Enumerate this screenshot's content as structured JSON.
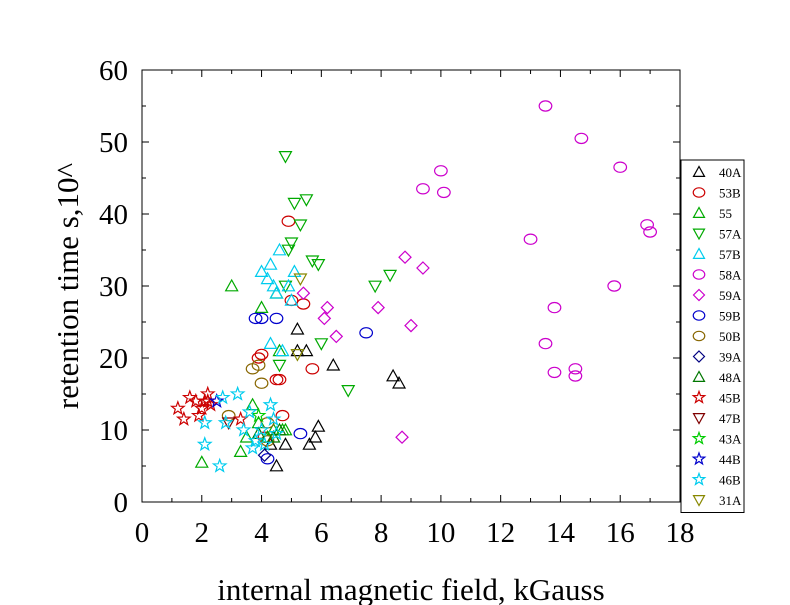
{
  "chart_data": {
    "type": "scatter",
    "xlabel": "internal magnetic field, kGauss",
    "ylabel": "retention time s,10^",
    "xlim": [
      0,
      18
    ],
    "ylim": [
      0,
      60
    ],
    "xticks": [
      "0",
      "2",
      "4",
      "6",
      "8",
      "10",
      "12",
      "14",
      "16",
      "18"
    ],
    "yticks": [
      "0",
      "10",
      "20",
      "30",
      "40",
      "50",
      "60"
    ],
    "grid": false,
    "legend_position": "right",
    "series": [
      {
        "name": "40A",
        "marker": "triangle-up",
        "color": "#000000",
        "points": [
          [
            4.5,
            5
          ],
          [
            4.8,
            8
          ],
          [
            5.2,
            24
          ],
          [
            5.5,
            21
          ],
          [
            5.2,
            21
          ],
          [
            5.6,
            8
          ],
          [
            5.8,
            9
          ],
          [
            5.9,
            10.5
          ],
          [
            6.4,
            19
          ],
          [
            8.4,
            17.5
          ],
          [
            8.6,
            16.5
          ],
          [
            4.3,
            8
          ]
        ]
      },
      {
        "name": "53B",
        "marker": "circle",
        "color": "#cc0000",
        "points": [
          [
            3.9,
            20
          ],
          [
            4.0,
            20.5
          ],
          [
            4.5,
            17
          ],
          [
            4.6,
            17
          ],
          [
            4.7,
            12
          ],
          [
            4.9,
            39
          ],
          [
            5.0,
            28
          ],
          [
            5.4,
            27.5
          ],
          [
            5.7,
            18.5
          ],
          [
            4.1,
            9
          ]
        ]
      },
      {
        "name": "55",
        "marker": "triangle-up",
        "color": "#00aa00",
        "points": [
          [
            2.0,
            5.5
          ],
          [
            3.0,
            30
          ],
          [
            3.3,
            7
          ],
          [
            3.5,
            9
          ],
          [
            3.7,
            13.5
          ],
          [
            3.9,
            11
          ],
          [
            4.0,
            27
          ],
          [
            4.2,
            9
          ],
          [
            4.4,
            10
          ],
          [
            4.5,
            29
          ],
          [
            4.6,
            21
          ],
          [
            4.7,
            10
          ],
          [
            4.8,
            10
          ]
        ]
      },
      {
        "name": "57A",
        "marker": "triangle-down",
        "color": "#00aa00",
        "points": [
          [
            4.8,
            48
          ],
          [
            4.9,
            35
          ],
          [
            5.0,
            36
          ],
          [
            5.1,
            41.5
          ],
          [
            5.3,
            38.5
          ],
          [
            5.5,
            42
          ],
          [
            5.7,
            33.5
          ],
          [
            5.9,
            33
          ],
          [
            6.0,
            22
          ],
          [
            6.9,
            15.5
          ],
          [
            7.8,
            30
          ],
          [
            8.3,
            31.5
          ],
          [
            4.8,
            30
          ],
          [
            4.6,
            19
          ]
        ]
      },
      {
        "name": "57B",
        "marker": "triangle-up",
        "color": "#00ccee",
        "points": [
          [
            4.0,
            32
          ],
          [
            4.2,
            31
          ],
          [
            4.3,
            33
          ],
          [
            4.4,
            30
          ],
          [
            4.5,
            29
          ],
          [
            4.6,
            35
          ],
          [
            4.3,
            22
          ],
          [
            4.7,
            21
          ],
          [
            5.0,
            28
          ],
          [
            5.1,
            32
          ],
          [
            4.9,
            30
          ]
        ]
      },
      {
        "name": "58A",
        "marker": "circle",
        "color": "#cc00cc",
        "points": [
          [
            13.5,
            55
          ],
          [
            14.7,
            50.5
          ],
          [
            16.0,
            46.5
          ],
          [
            10.0,
            46
          ],
          [
            9.4,
            43.5
          ],
          [
            10.1,
            43
          ],
          [
            16.9,
            38.5
          ],
          [
            17.0,
            37.5
          ],
          [
            13.0,
            36.5
          ],
          [
            15.8,
            30
          ],
          [
            13.8,
            27
          ],
          [
            13.5,
            22
          ],
          [
            13.8,
            18
          ],
          [
            14.5,
            18.5
          ],
          [
            14.5,
            17.5
          ]
        ]
      },
      {
        "name": "59A",
        "marker": "diamond",
        "color": "#cc00cc",
        "points": [
          [
            8.8,
            34
          ],
          [
            9.4,
            32.5
          ],
          [
            5.4,
            29
          ],
          [
            6.2,
            27
          ],
          [
            6.1,
            25.5
          ],
          [
            7.9,
            27
          ],
          [
            6.5,
            23
          ],
          [
            9.0,
            24.5
          ],
          [
            8.7,
            9
          ]
        ]
      },
      {
        "name": "59B",
        "marker": "circle",
        "color": "#0000cc",
        "points": [
          [
            3.8,
            25.5
          ],
          [
            4.0,
            25.5
          ],
          [
            4.5,
            25.5
          ],
          [
            7.5,
            23.5
          ],
          [
            5.3,
            9.5
          ],
          [
            4.2,
            6
          ]
        ]
      },
      {
        "name": "50B",
        "marker": "circle",
        "color": "#886600",
        "points": [
          [
            2.9,
            12
          ],
          [
            3.9,
            19
          ],
          [
            3.7,
            18.5
          ],
          [
            4.0,
            16.5
          ],
          [
            4.2,
            8.5
          ],
          [
            4.2,
            11
          ]
        ]
      },
      {
        "name": "39A",
        "marker": "diamond",
        "color": "#000080",
        "points": [
          [
            4.1,
            6.5
          ]
        ]
      },
      {
        "name": "48A",
        "marker": "triangle-up",
        "color": "#007700",
        "points": [
          [
            3.9,
            9.5
          ],
          [
            4.4,
            9
          ],
          [
            4.6,
            10
          ]
        ]
      },
      {
        "name": "45B",
        "marker": "star",
        "color": "#cc0000",
        "points": [
          [
            1.2,
            13
          ],
          [
            1.4,
            11.5
          ],
          [
            1.6,
            14.5
          ],
          [
            1.8,
            14
          ],
          [
            1.9,
            12
          ],
          [
            2.0,
            13
          ],
          [
            2.1,
            14
          ],
          [
            2.2,
            15
          ],
          [
            2.2,
            14
          ],
          [
            2.3,
            13.5
          ],
          [
            3.3,
            11.5
          ]
        ]
      },
      {
        "name": "47B",
        "marker": "triangle-down",
        "color": "#800000",
        "points": [
          [
            2.9,
            11
          ]
        ]
      },
      {
        "name": "43A",
        "marker": "star",
        "color": "#00cc00",
        "points": [
          [
            3.9,
            12
          ]
        ]
      },
      {
        "name": "44B",
        "marker": "star",
        "color": "#0000cc",
        "points": [
          [
            2.5,
            14
          ]
        ]
      },
      {
        "name": "46B",
        "marker": "star",
        "color": "#00ccee",
        "points": [
          [
            2.1,
            8
          ],
          [
            2.1,
            11
          ],
          [
            2.6,
            5
          ],
          [
            2.7,
            14.5
          ],
          [
            2.8,
            11
          ],
          [
            3.2,
            15
          ],
          [
            3.4,
            10
          ],
          [
            3.6,
            12.5
          ],
          [
            3.8,
            8.5
          ],
          [
            4.0,
            10
          ],
          [
            4.1,
            8
          ],
          [
            4.3,
            13.5
          ],
          [
            4.4,
            11.5
          ],
          [
            4.5,
            9.5
          ],
          [
            3.7,
            7.5
          ]
        ]
      },
      {
        "name": "31A",
        "marker": "triangle-down",
        "color": "#888800",
        "points": [
          [
            5.2,
            20.5
          ],
          [
            5.3,
            31
          ]
        ]
      }
    ]
  }
}
